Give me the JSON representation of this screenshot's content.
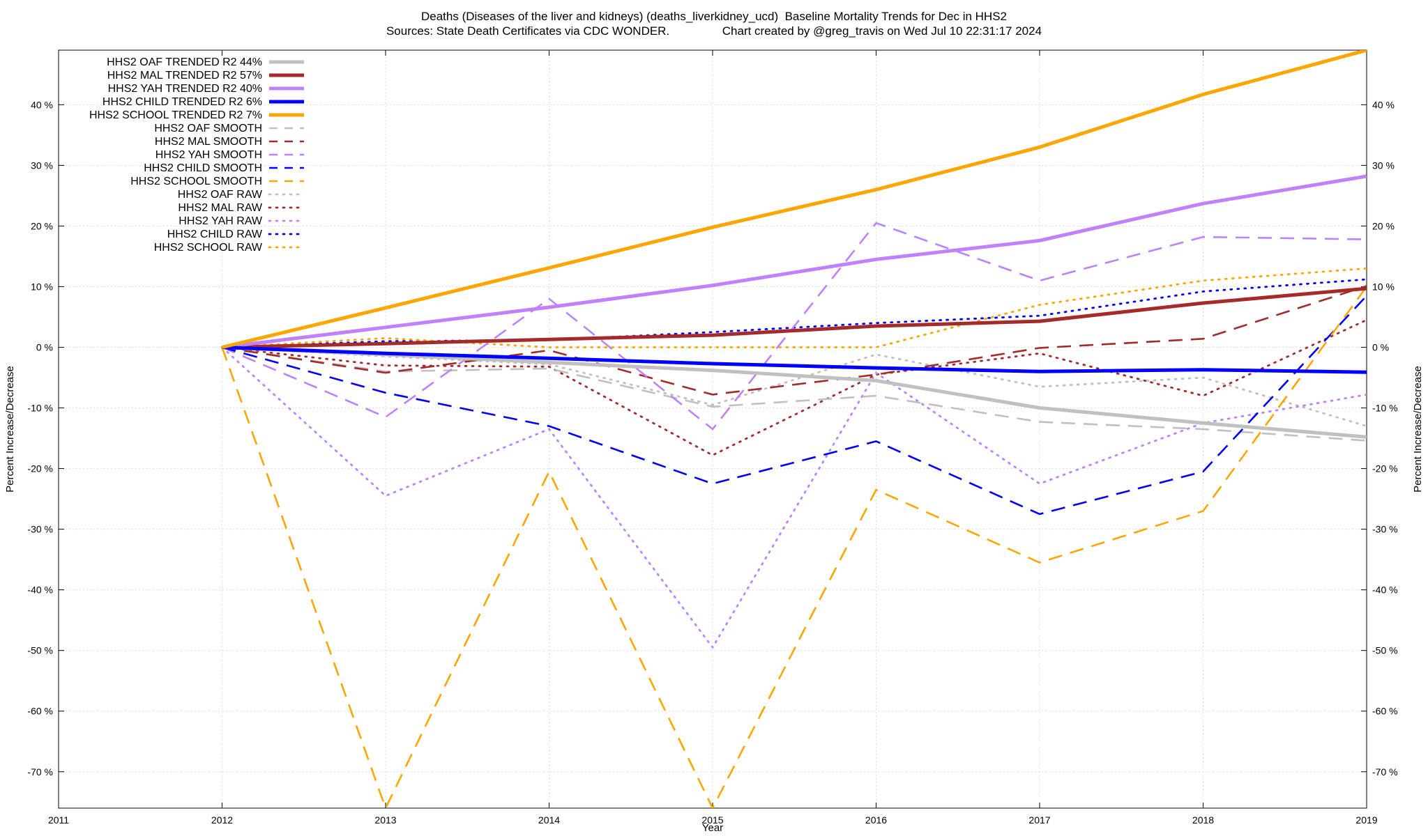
{
  "chart_data": {
    "type": "line",
    "title": "Deaths (Diseases of the liver and kidneys) (deaths_liverkidney_ucd)  Baseline Mortality Trends for Dec in HHS2",
    "subtitle": "Sources: State Death Certificates via CDC WONDER.                Chart created by @greg_travis on Wed Jul 10 22:31:17 2024",
    "xlabel": "Year",
    "ylabel": "Percent Increase/Decrease",
    "y2label": "Percent Increase/Decrease",
    "xlim": [
      2011,
      2019
    ],
    "ylim": [
      -76,
      49
    ],
    "xticks": [
      "2011",
      "2012",
      "2013",
      "2014",
      "2015",
      "2016",
      "2017",
      "2018",
      "2019"
    ],
    "yticks": [
      "-70 %",
      "-60 %",
      "-50 %",
      "-40 %",
      "-30 %",
      "-20 %",
      "-10 %",
      "0 %",
      "10 %",
      "20 %",
      "30 %",
      "40 %"
    ],
    "grid": true,
    "legend_position": "top-left",
    "x": [
      2012,
      2013,
      2014,
      2015,
      2016,
      2017,
      2018,
      2019
    ],
    "series": [
      {
        "name": "HHS2 OAF TRENDED R2  44%",
        "style": "solid",
        "color": "#c0c0c0",
        "values": [
          0,
          -1.2,
          -2.5,
          -3.8,
          -5.5,
          -10,
          -12.5,
          -14.8
        ]
      },
      {
        "name": "HHS2 MAL TRENDED R2  57%",
        "style": "solid",
        "color": "#a52a2a",
        "values": [
          0,
          0.6,
          1.3,
          2.0,
          3.5,
          4.3,
          7.3,
          9.7
        ]
      },
      {
        "name": "HHS2 YAH TRENDED R2  40%",
        "style": "solid",
        "color": "#c080ff",
        "values": [
          0,
          3.3,
          6.6,
          10.2,
          14.5,
          17.6,
          23.7,
          28.2
        ]
      },
      {
        "name": "HHS2 CHILD TRENDED R2   6%",
        "style": "solid",
        "color": "#0000ff",
        "values": [
          0,
          -1.0,
          -1.8,
          -2.7,
          -3.4,
          -4.0,
          -3.7,
          -4.1
        ]
      },
      {
        "name": "HHS2 SCHOOL TRENDED R2   7%",
        "style": "solid",
        "color": "#ffa500",
        "values": [
          0,
          6.5,
          13.1,
          19.8,
          26.0,
          33.0,
          41.7,
          49.0
        ]
      },
      {
        "name": "HHS2 OAF SMOOTH",
        "style": "dashed",
        "color": "#c0c0c0",
        "values": [
          0,
          -4.0,
          -3.5,
          -9.8,
          -8.0,
          -12.3,
          -13.5,
          -15.4
        ]
      },
      {
        "name": "HHS2 MAL SMOOTH",
        "style": "dashed",
        "color": "#a52a2a",
        "values": [
          0,
          -4.2,
          -0.5,
          -7.8,
          -4.5,
          -0.1,
          1.4,
          10.1
        ]
      },
      {
        "name": "HHS2 YAH SMOOTH",
        "style": "dashed",
        "color": "#c080ff",
        "values": [
          0,
          -11.5,
          8.0,
          -13.5,
          20.5,
          11.0,
          18.2,
          17.8
        ]
      },
      {
        "name": "HHS2 CHILD SMOOTH",
        "style": "dashed",
        "color": "#0000ff",
        "values": [
          0,
          -7.5,
          -13.0,
          -22.5,
          -15.5,
          -27.5,
          -20.5,
          8.5
        ]
      },
      {
        "name": "HHS2 SCHOOL SMOOTH",
        "style": "dashed",
        "color": "#ffa500",
        "values": [
          0,
          -76,
          -20.5,
          -76,
          -23.5,
          -35.5,
          -27.0,
          10.0
        ]
      },
      {
        "name": "HHS2 OAF RAW",
        "style": "dotted",
        "color": "#c0c0c0",
        "values": [
          0,
          -1.5,
          -2.8,
          -9.5,
          -1.2,
          -6.5,
          -5.0,
          -13.0
        ]
      },
      {
        "name": "HHS2 MAL RAW",
        "style": "dotted",
        "color": "#a52a2a",
        "values": [
          0,
          -3.0,
          -3.2,
          -17.8,
          -4.5,
          -1.0,
          -8.0,
          4.5
        ]
      },
      {
        "name": "HHS2 YAH RAW",
        "style": "dotted",
        "color": "#c080ff",
        "values": [
          0,
          -24.5,
          -13.5,
          -49.5,
          -4.2,
          -22.5,
          -12.5,
          -7.8
        ]
      },
      {
        "name": "HHS2 CHILD RAW",
        "style": "dotted",
        "color": "#0000ff",
        "values": [
          0,
          1.0,
          1.2,
          2.5,
          4.0,
          5.2,
          9.2,
          11.2
        ]
      },
      {
        "name": "HHS2 SCHOOL RAW",
        "style": "dotted",
        "color": "#ffa500",
        "values": [
          0,
          1.5,
          0.0,
          0.0,
          0.0,
          7.0,
          11.0,
          13.0
        ]
      }
    ]
  }
}
